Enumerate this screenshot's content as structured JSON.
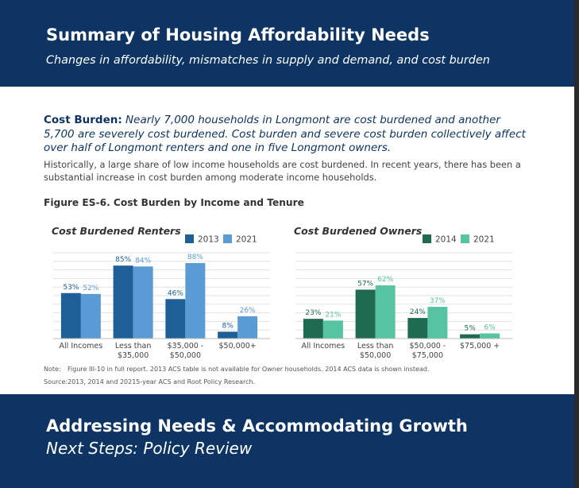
{
  "header": {
    "title": "Summary of Housing Affordability Needs",
    "subtitle": "Changes in affordability, mismatches in supply and demand, and cost burden"
  },
  "intro": {
    "lead": "Cost Burden:",
    "emphasis": " Nearly 7,000 households in Longmont are cost burdened and another 5,700 are severely cost burdened. Cost burden and severe cost burden collectively affect over half of Longmont renters and one in five Longmont owners.",
    "body": "Historically, a large share of low income households are cost burdened. In recent years, there has been a substantial increase in cost burden among moderate income households."
  },
  "figure": {
    "title": "Figure ES-6. Cost Burden by Income and Tenure"
  },
  "notes": {
    "note_label": "Note:",
    "note_text": "Figure III-10 in full report. 2013 ACS table is not available for Owner households. 2014 ACS data is shown instead.",
    "source_label": "Source:",
    "source_text": "2013, 2014 and 20215-year ACS and Root Policy Research."
  },
  "footer": {
    "title": "Addressing Needs & Accommodating Growth",
    "subtitle": "Next Steps: Policy Review"
  },
  "colors": {
    "navy": "#0e3463",
    "renters_2013": "#1d5f96",
    "renters_2021": "#5b9bd5",
    "owners_2014": "#1f6b52",
    "owners_2021": "#56c4a0"
  },
  "chart_data": [
    {
      "type": "bar",
      "title": "Cost Burdened Renters",
      "categories": [
        [
          "All Incomes"
        ],
        [
          "Less than",
          "$35,000"
        ],
        [
          "$35,000 -",
          "$50,000"
        ],
        [
          "$50,000+"
        ]
      ],
      "series": [
        {
          "name": "2013",
          "values": [
            53,
            85,
            46,
            8
          ],
          "color": "#1d5f96",
          "label_color": "#1d5f96"
        },
        {
          "name": "2021",
          "values": [
            52,
            84,
            88,
            26
          ],
          "color": "#5b9bd5",
          "label_color": "#5b9bd5"
        }
      ],
      "value_suffix": "%",
      "ylim": [
        0,
        100
      ],
      "grid": true,
      "legend": "top-right"
    },
    {
      "type": "bar",
      "title": "Cost Burdened Owners",
      "categories": [
        [
          "All Incomes"
        ],
        [
          "Less than",
          "$50,000"
        ],
        [
          "$50,000 -",
          "$75,000"
        ],
        [
          "$75,000 +"
        ]
      ],
      "series": [
        {
          "name": "2014",
          "values": [
            23,
            57,
            24,
            5
          ],
          "color": "#1f6b52",
          "label_color": "#1f6b52"
        },
        {
          "name": "2021",
          "values": [
            21,
            62,
            37,
            6
          ],
          "color": "#56c4a0",
          "label_color": "#56c4a0"
        }
      ],
      "value_suffix": "%",
      "ylim": [
        0,
        100
      ],
      "grid": true,
      "legend": "top-right"
    }
  ]
}
